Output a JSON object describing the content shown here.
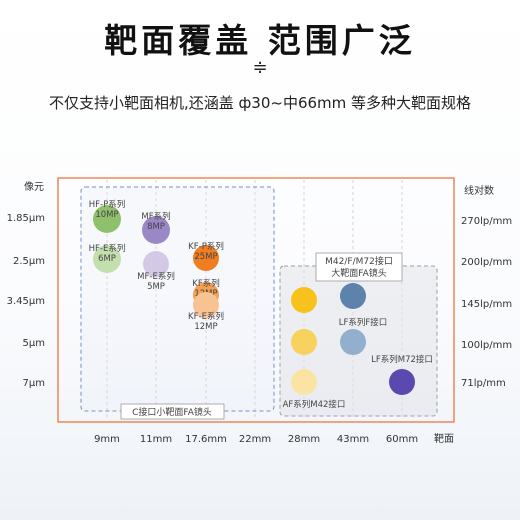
{
  "header": {
    "title": "靶面覆盖 范围广泛",
    "mark": "≑",
    "subtitle": "不仅支持小靶面相机,还涵盖 ф30~中66mm 等多种大靶面规格"
  },
  "chart_data": {
    "type": "scatter",
    "left_axis_title": "像元",
    "right_axis_title": "线对数",
    "x_axis_title": "靶面",
    "x_categories": [
      "9mm",
      "11mm",
      "17.6mm",
      "22mm",
      "28mm",
      "43mm",
      "60mm"
    ],
    "pixel_sizes": [
      "1.85μm",
      "2.5μm",
      "3.45μm",
      "5μm",
      "7μm"
    ],
    "line_pairs": [
      "270lp/mm",
      "200lp/mm",
      "145lp/mm",
      "100lp/mm",
      "71lp/mm"
    ],
    "groups": [
      {
        "name": "C接口小靶面FA镜头",
        "lines": [
          "C接口小靶面FA镜头"
        ]
      },
      {
        "name": "M42/F/M72接口大靶面FA镜头",
        "lines": [
          "M42/F/M72接口",
          "大靶面FA镜头"
        ]
      }
    ],
    "points": [
      {
        "x": "9mm",
        "y": "1.85μm",
        "color": "#8fc06b",
        "labels": [
          "HF-P系列",
          "10MP"
        ]
      },
      {
        "x": "9mm",
        "y": "2.5μm",
        "color": "#c3dfae",
        "labels": [
          "HF-E系列",
          "6MP"
        ]
      },
      {
        "x": "11mm",
        "y": "1.85μm",
        "color": "#9b87c5",
        "labels": [
          "MF系列",
          "8MP"
        ]
      },
      {
        "x": "11mm",
        "y": "2.5μm",
        "color": "#d3c9e6",
        "labels": [
          "MF-E系列",
          "5MP"
        ]
      },
      {
        "x": "17.6mm",
        "y": "2.5μm",
        "color": "#f07d22",
        "labels": [
          "KF-P系列",
          "25MP"
        ]
      },
      {
        "x": "17.6mm",
        "y": "3.45μm",
        "color": "#f3a157",
        "labels": [
          "KF系列",
          "12MP"
        ]
      },
      {
        "x": "17.6mm",
        "y": "3.45μm",
        "color": "#f7c393",
        "labels": [
          "KF-E系列",
          "12MP"
        ]
      },
      {
        "x": "28mm",
        "y": "3.45μm",
        "color": "#f6c21b",
        "labels": []
      },
      {
        "x": "28mm",
        "y": "5μm",
        "color": "#f8d25e",
        "labels": []
      },
      {
        "x": "28mm",
        "y": "7μm",
        "color": "#fbe4a3",
        "labels": [
          "AF系列M42接口"
        ]
      },
      {
        "x": "43mm",
        "y": "3.45μm",
        "color": "#5d83ad",
        "labels": []
      },
      {
        "x": "43mm",
        "y": "5μm",
        "color": "#92afcd",
        "labels": [
          "LF系列F接口"
        ]
      },
      {
        "x": "60mm",
        "y": "7μm",
        "color": "#5b49b0",
        "labels": [
          "LF系列M72接口"
        ]
      }
    ],
    "accent": "#f06a2f",
    "dash_color": "#7790c0"
  }
}
